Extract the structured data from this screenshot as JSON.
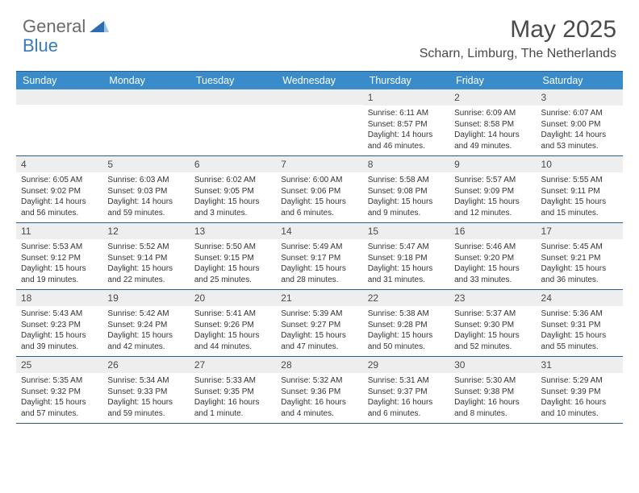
{
  "brand": {
    "general": "General",
    "blue": "Blue"
  },
  "title": "May 2025",
  "location": "Scharn, Limburg, The Netherlands",
  "colors": {
    "header_bg": "#3a8bc9",
    "border": "#2a5d8a",
    "daynum_bg": "#eeeeee",
    "text": "#4a4a4a"
  },
  "day_names": [
    "Sunday",
    "Monday",
    "Tuesday",
    "Wednesday",
    "Thursday",
    "Friday",
    "Saturday"
  ],
  "weeks": [
    [
      {
        "n": "",
        "sr": "",
        "ss": "",
        "dl": ""
      },
      {
        "n": "",
        "sr": "",
        "ss": "",
        "dl": ""
      },
      {
        "n": "",
        "sr": "",
        "ss": "",
        "dl": ""
      },
      {
        "n": "",
        "sr": "",
        "ss": "",
        "dl": ""
      },
      {
        "n": "1",
        "sr": "Sunrise: 6:11 AM",
        "ss": "Sunset: 8:57 PM",
        "dl": "Daylight: 14 hours and 46 minutes."
      },
      {
        "n": "2",
        "sr": "Sunrise: 6:09 AM",
        "ss": "Sunset: 8:58 PM",
        "dl": "Daylight: 14 hours and 49 minutes."
      },
      {
        "n": "3",
        "sr": "Sunrise: 6:07 AM",
        "ss": "Sunset: 9:00 PM",
        "dl": "Daylight: 14 hours and 53 minutes."
      }
    ],
    [
      {
        "n": "4",
        "sr": "Sunrise: 6:05 AM",
        "ss": "Sunset: 9:02 PM",
        "dl": "Daylight: 14 hours and 56 minutes."
      },
      {
        "n": "5",
        "sr": "Sunrise: 6:03 AM",
        "ss": "Sunset: 9:03 PM",
        "dl": "Daylight: 14 hours and 59 minutes."
      },
      {
        "n": "6",
        "sr": "Sunrise: 6:02 AM",
        "ss": "Sunset: 9:05 PM",
        "dl": "Daylight: 15 hours and 3 minutes."
      },
      {
        "n": "7",
        "sr": "Sunrise: 6:00 AM",
        "ss": "Sunset: 9:06 PM",
        "dl": "Daylight: 15 hours and 6 minutes."
      },
      {
        "n": "8",
        "sr": "Sunrise: 5:58 AM",
        "ss": "Sunset: 9:08 PM",
        "dl": "Daylight: 15 hours and 9 minutes."
      },
      {
        "n": "9",
        "sr": "Sunrise: 5:57 AM",
        "ss": "Sunset: 9:09 PM",
        "dl": "Daylight: 15 hours and 12 minutes."
      },
      {
        "n": "10",
        "sr": "Sunrise: 5:55 AM",
        "ss": "Sunset: 9:11 PM",
        "dl": "Daylight: 15 hours and 15 minutes."
      }
    ],
    [
      {
        "n": "11",
        "sr": "Sunrise: 5:53 AM",
        "ss": "Sunset: 9:12 PM",
        "dl": "Daylight: 15 hours and 19 minutes."
      },
      {
        "n": "12",
        "sr": "Sunrise: 5:52 AM",
        "ss": "Sunset: 9:14 PM",
        "dl": "Daylight: 15 hours and 22 minutes."
      },
      {
        "n": "13",
        "sr": "Sunrise: 5:50 AM",
        "ss": "Sunset: 9:15 PM",
        "dl": "Daylight: 15 hours and 25 minutes."
      },
      {
        "n": "14",
        "sr": "Sunrise: 5:49 AM",
        "ss": "Sunset: 9:17 PM",
        "dl": "Daylight: 15 hours and 28 minutes."
      },
      {
        "n": "15",
        "sr": "Sunrise: 5:47 AM",
        "ss": "Sunset: 9:18 PM",
        "dl": "Daylight: 15 hours and 31 minutes."
      },
      {
        "n": "16",
        "sr": "Sunrise: 5:46 AM",
        "ss": "Sunset: 9:20 PM",
        "dl": "Daylight: 15 hours and 33 minutes."
      },
      {
        "n": "17",
        "sr": "Sunrise: 5:45 AM",
        "ss": "Sunset: 9:21 PM",
        "dl": "Daylight: 15 hours and 36 minutes."
      }
    ],
    [
      {
        "n": "18",
        "sr": "Sunrise: 5:43 AM",
        "ss": "Sunset: 9:23 PM",
        "dl": "Daylight: 15 hours and 39 minutes."
      },
      {
        "n": "19",
        "sr": "Sunrise: 5:42 AM",
        "ss": "Sunset: 9:24 PM",
        "dl": "Daylight: 15 hours and 42 minutes."
      },
      {
        "n": "20",
        "sr": "Sunrise: 5:41 AM",
        "ss": "Sunset: 9:26 PM",
        "dl": "Daylight: 15 hours and 44 minutes."
      },
      {
        "n": "21",
        "sr": "Sunrise: 5:39 AM",
        "ss": "Sunset: 9:27 PM",
        "dl": "Daylight: 15 hours and 47 minutes."
      },
      {
        "n": "22",
        "sr": "Sunrise: 5:38 AM",
        "ss": "Sunset: 9:28 PM",
        "dl": "Daylight: 15 hours and 50 minutes."
      },
      {
        "n": "23",
        "sr": "Sunrise: 5:37 AM",
        "ss": "Sunset: 9:30 PM",
        "dl": "Daylight: 15 hours and 52 minutes."
      },
      {
        "n": "24",
        "sr": "Sunrise: 5:36 AM",
        "ss": "Sunset: 9:31 PM",
        "dl": "Daylight: 15 hours and 55 minutes."
      }
    ],
    [
      {
        "n": "25",
        "sr": "Sunrise: 5:35 AM",
        "ss": "Sunset: 9:32 PM",
        "dl": "Daylight: 15 hours and 57 minutes."
      },
      {
        "n": "26",
        "sr": "Sunrise: 5:34 AM",
        "ss": "Sunset: 9:33 PM",
        "dl": "Daylight: 15 hours and 59 minutes."
      },
      {
        "n": "27",
        "sr": "Sunrise: 5:33 AM",
        "ss": "Sunset: 9:35 PM",
        "dl": "Daylight: 16 hours and 1 minute."
      },
      {
        "n": "28",
        "sr": "Sunrise: 5:32 AM",
        "ss": "Sunset: 9:36 PM",
        "dl": "Daylight: 16 hours and 4 minutes."
      },
      {
        "n": "29",
        "sr": "Sunrise: 5:31 AM",
        "ss": "Sunset: 9:37 PM",
        "dl": "Daylight: 16 hours and 6 minutes."
      },
      {
        "n": "30",
        "sr": "Sunrise: 5:30 AM",
        "ss": "Sunset: 9:38 PM",
        "dl": "Daylight: 16 hours and 8 minutes."
      },
      {
        "n": "31",
        "sr": "Sunrise: 5:29 AM",
        "ss": "Sunset: 9:39 PM",
        "dl": "Daylight: 16 hours and 10 minutes."
      }
    ]
  ]
}
